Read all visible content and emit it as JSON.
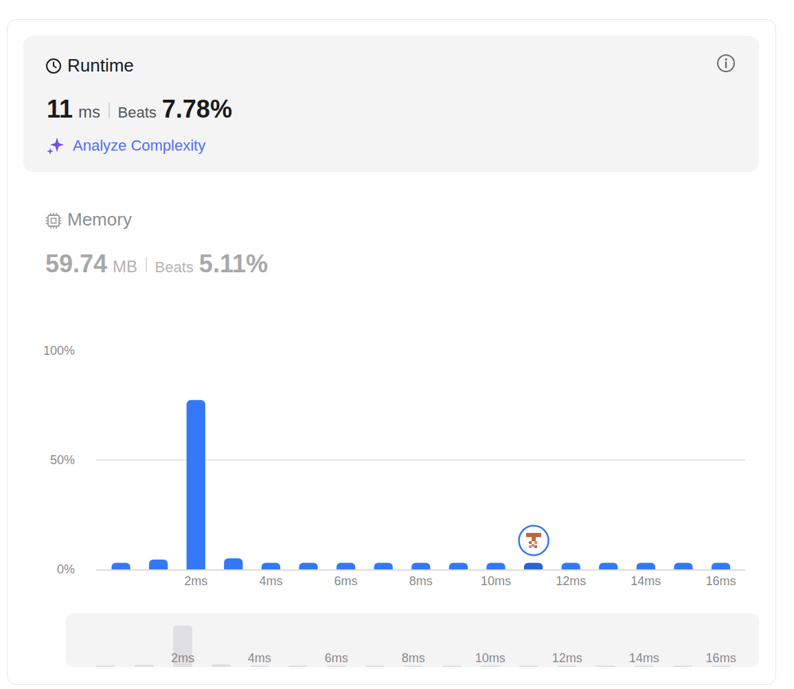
{
  "runtime": {
    "title": "Runtime",
    "value": "11",
    "unit": "ms",
    "beats_label": "Beats",
    "beats": "7.78%",
    "link": "Analyze Complexity"
  },
  "memory": {
    "title": "Memory",
    "value": "59.74",
    "unit": "MB",
    "beats_label": "Beats",
    "beats": "5.11%"
  },
  "chart_data": {
    "type": "bar",
    "x": [
      0,
      1,
      2,
      3,
      4,
      5,
      6,
      7,
      8,
      9,
      10,
      11,
      12,
      13,
      14,
      15,
      16
    ],
    "values": [
      3,
      4.5,
      77.4,
      5,
      3,
      3,
      3,
      3,
      3,
      3,
      3,
      3,
      3,
      3,
      3,
      3,
      3
    ],
    "colors": [
      "#3478f6",
      "#3478f6",
      "#3478f6",
      "#3478f6",
      "#3478f6",
      "#3478f6",
      "#3478f6",
      "#3478f6",
      "#3478f6",
      "#3478f6",
      "#3478f6",
      "#2b63d4",
      "#3478f6",
      "#3478f6",
      "#3478f6",
      "#3478f6",
      "#3478f6"
    ],
    "xlim": [
      -0.66,
      16.65
    ],
    "xticks": [
      {
        "value": 2,
        "label": "2ms"
      },
      {
        "value": 4,
        "label": "4ms"
      },
      {
        "value": 6,
        "label": "6ms"
      },
      {
        "value": 8,
        "label": "8ms"
      },
      {
        "value": 10,
        "label": "10ms"
      },
      {
        "value": 12,
        "label": "12ms"
      },
      {
        "value": 14,
        "label": "14ms"
      },
      {
        "value": 16,
        "label": "16ms"
      }
    ],
    "ylim": [
      0,
      100
    ],
    "yticks": [
      {
        "value": 0,
        "label": "0%"
      },
      {
        "value": 50,
        "label": "50%"
      },
      {
        "value": 100,
        "label": "100%"
      }
    ],
    "grid": true
  }
}
